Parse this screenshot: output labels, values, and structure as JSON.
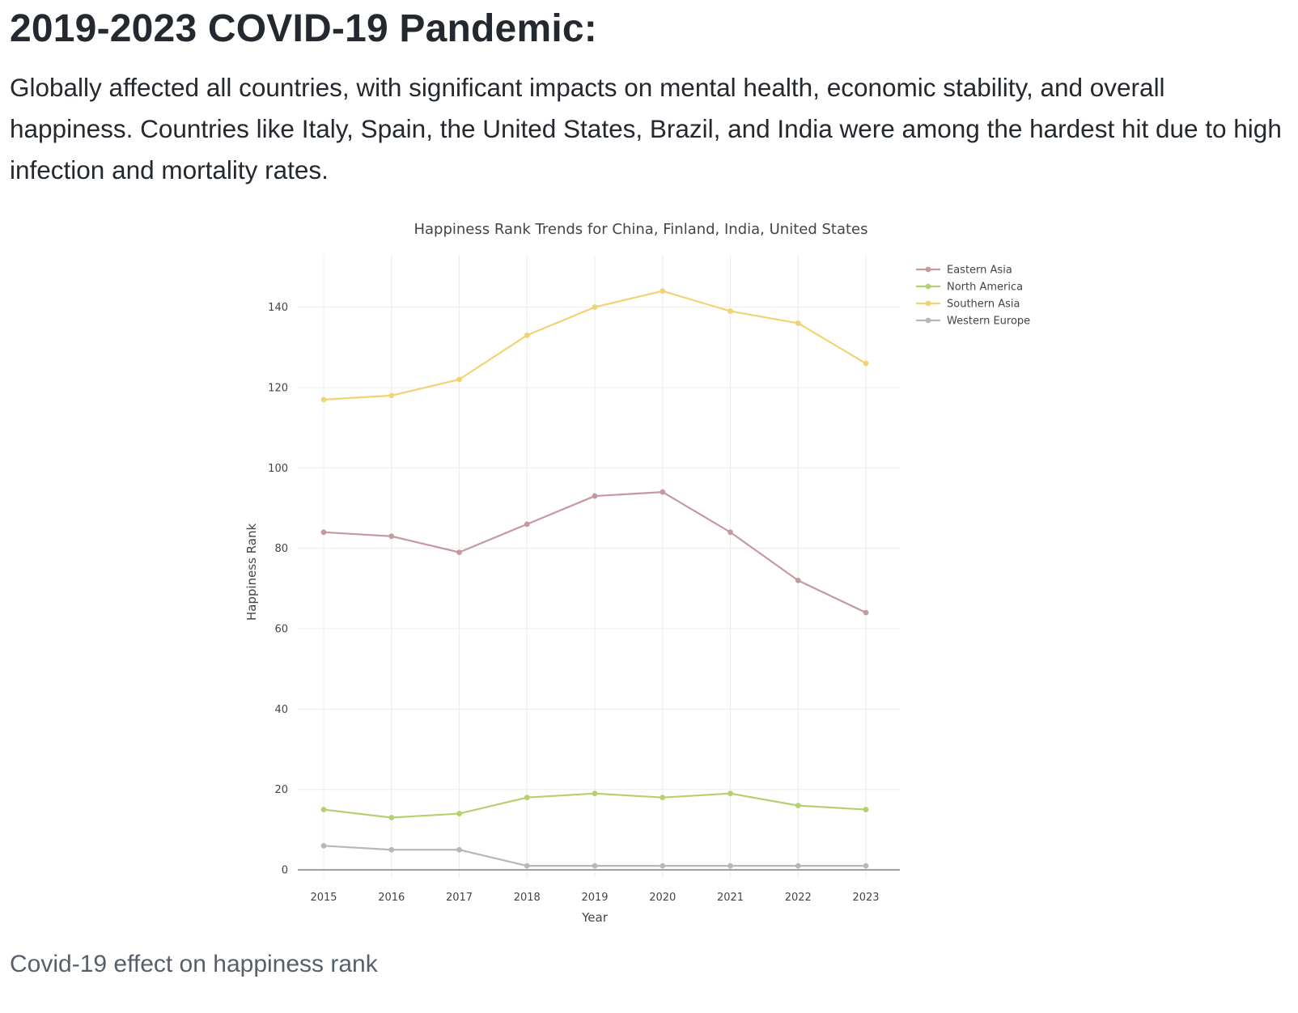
{
  "heading": "2019-2023 COVID-19 Pandemic:",
  "intro": "Globally affected all countries, with significant impacts on mental health, economic stability, and overall happiness. Countries like Italy, Spain, the United States, Brazil, and India were among the hardest hit due to high infection and mortality rates.",
  "caption": "Covid-19 effect on happiness rank",
  "chart_data": {
    "type": "line",
    "title": "Happiness Rank Trends for China, Finland, India, United States",
    "xlabel": "Year",
    "ylabel": "Happiness Rank",
    "x": [
      2015,
      2016,
      2017,
      2018,
      2019,
      2020,
      2021,
      2022,
      2023
    ],
    "ylim": [
      -3,
      153
    ],
    "yticks": [
      0,
      20,
      40,
      60,
      80,
      100,
      120,
      140
    ],
    "grid": true,
    "legend_position": "top-right",
    "series": [
      {
        "name": "Eastern Asia",
        "color": "#c49a9f",
        "values": [
          84,
          83,
          79,
          86,
          93,
          94,
          84,
          72,
          64
        ]
      },
      {
        "name": "North America",
        "color": "#b5d06e",
        "values": [
          15,
          13,
          14,
          18,
          19,
          18,
          19,
          16,
          15
        ]
      },
      {
        "name": "Southern Asia",
        "color": "#f0d474",
        "values": [
          117,
          118,
          122,
          133,
          140,
          144,
          139,
          136,
          126
        ]
      },
      {
        "name": "Western Europe",
        "color": "#b8b8b8",
        "values": [
          6,
          5,
          5,
          1,
          1,
          1,
          1,
          1,
          1
        ]
      }
    ]
  }
}
